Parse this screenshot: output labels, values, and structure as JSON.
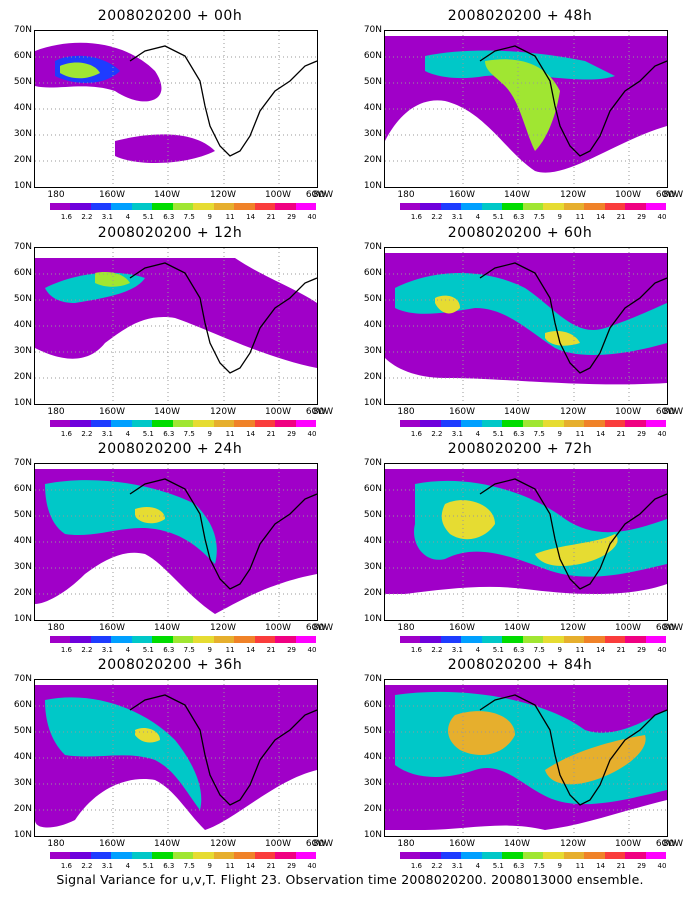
{
  "panels": [
    {
      "title": "2008020200 + 00h"
    },
    {
      "title": "2008020200 + 48h"
    },
    {
      "title": "2008020200 + 12h"
    },
    {
      "title": "2008020200 + 60h"
    },
    {
      "title": "2008020200 + 24h"
    },
    {
      "title": "2008020200 + 72h"
    },
    {
      "title": "2008020200 + 36h"
    },
    {
      "title": "2008020200 + 84h"
    }
  ],
  "lat_labels": [
    "70N",
    "60N",
    "50N",
    "40N",
    "30N",
    "20N",
    "10N"
  ],
  "lon_labels": [
    "180",
    "160W",
    "140W",
    "120W",
    "100W",
    "80W",
    "60W"
  ],
  "colorbar": {
    "levels": [
      "1.6",
      "2.2",
      "3.1",
      "4",
      "5.1",
      "6.3",
      "7.5",
      "9",
      "11",
      "14",
      "21",
      "29",
      "40"
    ],
    "colors": [
      "#a000c8",
      "#6e00dc",
      "#1e3cff",
      "#00a0ff",
      "#00c8c8",
      "#00dc00",
      "#a0e632",
      "#e6dc32",
      "#e6af2d",
      "#f08228",
      "#fa3c3c",
      "#f00082",
      "#ff00ff"
    ]
  },
  "caption": "Signal Variance for u,v,T. Flight 23. Observation time 2008020200. 2008013000 ensemble."
}
